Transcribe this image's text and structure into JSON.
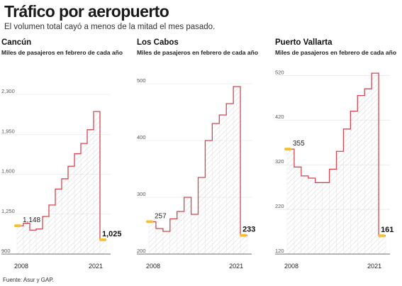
{
  "header": {
    "title": "Tráfico por aeropuerto",
    "subtitle": "El volumen total cayó a menos de la mitad el mes pasado."
  },
  "footer": {
    "source": "Fuente: Asur y GAP."
  },
  "colors": {
    "line": "#d64550",
    "fill_hatch": "#cfcfcf",
    "highlight_dot": "#f2c230",
    "axis": "#555555"
  },
  "chart_data": [
    {
      "type": "area",
      "title": "Cancún",
      "subtitle": "Miles de pasajeros en febrero de cada año",
      "x": [
        2008,
        2009,
        2010,
        2011,
        2012,
        2013,
        2014,
        2015,
        2016,
        2017,
        2018,
        2019,
        2020,
        2021
      ],
      "values": [
        1148,
        1170,
        1110,
        1120,
        1230,
        1330,
        1470,
        1560,
        1670,
        1780,
        1870,
        1990,
        2150,
        1025
      ],
      "yticks": [
        900,
        1250,
        1600,
        1950,
        2300
      ],
      "ytick_labels": [
        "900",
        "1,250",
        "1,600",
        "1,950",
        "2,300"
      ],
      "ylim": [
        900,
        2300
      ],
      "xtick_labels": [
        "2008",
        "2021"
      ],
      "first_label": "1,148",
      "last_label": "1,025"
    },
    {
      "type": "area",
      "title": "Los Cabos",
      "subtitle": "Miles de pasajeros en febrero de cada año",
      "x": [
        2008,
        2009,
        2010,
        2011,
        2012,
        2013,
        2014,
        2015,
        2016,
        2017,
        2018,
        2019,
        2020,
        2021
      ],
      "values": [
        257,
        245,
        240,
        262,
        275,
        300,
        270,
        335,
        400,
        430,
        445,
        465,
        495,
        233
      ],
      "yticks": [
        200,
        300,
        400,
        500
      ],
      "ytick_labels": [
        "200",
        "300",
        "400",
        "500"
      ],
      "ylim": [
        200,
        510
      ],
      "xtick_labels": [
        "2008",
        "2021"
      ],
      "first_label": "257",
      "last_label": "233"
    },
    {
      "type": "area",
      "title": "Puerto Vallarta",
      "subtitle": "Miles de pasajeros en febrero de cada año",
      "x": [
        2008,
        2009,
        2010,
        2011,
        2012,
        2013,
        2014,
        2015,
        2016,
        2017,
        2018,
        2019,
        2020,
        2021
      ],
      "values": [
        355,
        315,
        295,
        290,
        280,
        280,
        310,
        350,
        400,
        440,
        475,
        490,
        525,
        161
      ],
      "yticks": [
        120,
        220,
        320,
        420,
        520
      ],
      "ytick_labels": [
        "120",
        "220",
        "320",
        "420",
        "520"
      ],
      "ylim": [
        120,
        530
      ],
      "xtick_labels": [
        "2008",
        "2021"
      ],
      "first_label": "355",
      "last_label": "161"
    }
  ]
}
